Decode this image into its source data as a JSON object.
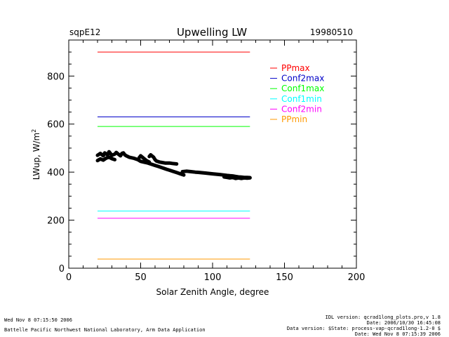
{
  "header": {
    "site": "sqpE12",
    "title": "Upwelling LW",
    "date": "19980510"
  },
  "footer": {
    "run_time": "Wed Nov  8 07:15:50 2006",
    "lab": "Battelle Pacific Northwest National Laboratory, Arm Data Application",
    "idl_version": "IDL version: qcrad1long_plots.pro,v 1.8",
    "idl_date": "Date: 2006/10/30 16:45:08",
    "data_version": "Data version: $State: process-vap-qcrad1long-1.2-0 $",
    "data_date": "Date: Wed Nov  8 07:15:39 2006"
  },
  "chart_data": {
    "type": "line",
    "title": "Upwelling LW",
    "xlabel": "Solar Zenith Angle, degree",
    "ylabel_main": "LWup, W/m",
    "ylabel_sup": "2",
    "xlim": [
      0,
      200
    ],
    "ylim": [
      0,
      950
    ],
    "x_ticks": [
      0,
      50,
      100,
      150,
      200
    ],
    "x_tick_labels": [
      "0",
      "50",
      "100",
      "150",
      "200"
    ],
    "y_ticks": [
      0,
      200,
      400,
      600,
      800
    ],
    "y_tick_labels": [
      "0",
      "200",
      "400",
      "600",
      "800"
    ],
    "legend_position": "top-right",
    "limit_lines": [
      {
        "name": "PPmax",
        "value": 900,
        "x": [
          20,
          126
        ],
        "color": "#ff0000"
      },
      {
        "name": "Conf2max",
        "value": 630,
        "x": [
          20,
          126
        ],
        "color": "#0000c8"
      },
      {
        "name": "Conf1max",
        "value": 590,
        "x": [
          20,
          126
        ],
        "color": "#00ff00"
      },
      {
        "name": "Conf1min",
        "value": 238,
        "x": [
          20,
          126
        ],
        "color": "#00ffff"
      },
      {
        "name": "Conf2min",
        "value": 208,
        "x": [
          20,
          126
        ],
        "color": "#ff00ff"
      },
      {
        "name": "PPmin",
        "value": 38,
        "x": [
          20,
          126
        ],
        "color": "#ff9900"
      }
    ],
    "series": [
      {
        "color": "#000000",
        "segments": [
          [
            [
              20,
              470
            ],
            [
              22,
              478
            ],
            [
              24,
              468
            ],
            [
              25,
              480
            ],
            [
              27,
              472
            ],
            [
              28,
              485
            ],
            [
              30,
              470
            ],
            [
              32,
              475
            ],
            [
              33,
              482
            ],
            [
              35,
              472
            ],
            [
              36,
              468
            ],
            [
              37,
              478
            ],
            [
              38,
              480
            ],
            [
              39,
              472
            ],
            [
              40,
              468
            ],
            [
              42,
              462
            ],
            [
              45,
              458
            ],
            [
              48,
              452
            ],
            [
              50,
              445
            ],
            [
              52,
              442
            ],
            [
              55,
              438
            ],
            [
              58,
              432
            ],
            [
              60,
              428
            ],
            [
              62,
              424
            ],
            [
              65,
              418
            ],
            [
              68,
              412
            ],
            [
              70,
              408
            ],
            [
              72,
              404
            ],
            [
              75,
              398
            ],
            [
              78,
              392
            ],
            [
              80,
              388
            ]
          ],
          [
            [
              20,
              448
            ],
            [
              22,
              455
            ],
            [
              24,
              450
            ],
            [
              26,
              458
            ],
            [
              28,
              462
            ],
            [
              30,
              456
            ],
            [
              32,
              452
            ]
          ],
          [
            [
              49,
              460
            ],
            [
              50,
              468
            ],
            [
              52,
              458
            ],
            [
              54,
              448
            ],
            [
              56,
              442
            ]
          ],
          [
            [
              56,
              465
            ],
            [
              57,
              472
            ],
            [
              59,
              462
            ],
            [
              60,
              452
            ],
            [
              61,
              446
            ],
            [
              63,
              442
            ],
            [
              65,
              440
            ],
            [
              67,
              438
            ],
            [
              70,
              438
            ],
            [
              72,
              436
            ],
            [
              75,
              434
            ]
          ],
          [
            [
              79,
              402
            ],
            [
              82,
              404
            ],
            [
              85,
              402
            ],
            [
              88,
              400
            ],
            [
              90,
              399
            ],
            [
              95,
              396
            ],
            [
              100,
              393
            ],
            [
              105,
              390
            ],
            [
              108,
              388
            ],
            [
              110,
              386
            ],
            [
              112,
              385
            ],
            [
              114,
              384
            ],
            [
              116,
              382
            ],
            [
              118,
              380
            ],
            [
              120,
              379
            ],
            [
              122,
              378
            ],
            [
              124,
              378
            ],
            [
              126,
              377
            ]
          ],
          [
            [
              108,
              380
            ],
            [
              110,
              378
            ],
            [
              112,
              376
            ],
            [
              114,
              378
            ],
            [
              116,
              374
            ],
            [
              118,
              376
            ],
            [
              120,
              374
            ],
            [
              122,
              376
            ],
            [
              124,
              375
            ],
            [
              126,
              376
            ]
          ]
        ]
      }
    ]
  }
}
